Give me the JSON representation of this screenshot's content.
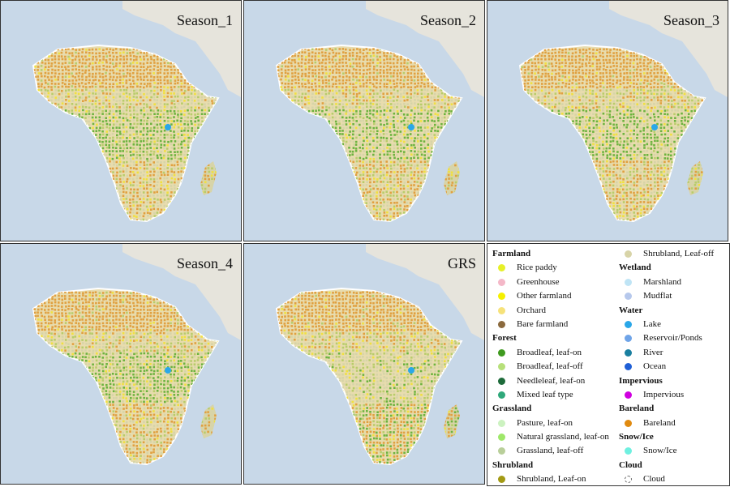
{
  "panels": [
    {
      "title": "Season_1",
      "dominant_colors": [
        "#e0a040",
        "#6db33f",
        "#b8cc6b",
        "#d6d4a8",
        "#f0e040"
      ]
    },
    {
      "title": "Season_2",
      "dominant_colors": [
        "#e0a040",
        "#6db33f",
        "#d6d4a8",
        "#b8cc6b",
        "#f0e040"
      ]
    },
    {
      "title": "Season_3",
      "dominant_colors": [
        "#e0a040",
        "#6db33f",
        "#d6d4a8",
        "#b8cc6b",
        "#f0e040"
      ]
    },
    {
      "title": "Season_4",
      "dominant_colors": [
        "#e0a040",
        "#6db33f",
        "#b8cc6b",
        "#d6d4a8",
        "#f0e040"
      ]
    },
    {
      "title": "GRS",
      "dominant_colors": [
        "#e0a040",
        "#d6d4a8",
        "#b8cc6b",
        "#6db33f",
        "#f0e040"
      ]
    }
  ],
  "legend": {
    "col1": [
      {
        "type": "head",
        "label": "Farmland"
      },
      {
        "type": "item",
        "label": "Rice paddy",
        "color": "#e6f028"
      },
      {
        "type": "item",
        "label": "Greenhouse",
        "color": "#f4b8c8"
      },
      {
        "type": "item",
        "label": "Other farmland",
        "color": "#f5f000"
      },
      {
        "type": "item",
        "label": "Orchard",
        "color": "#f6e27a"
      },
      {
        "type": "item",
        "label": "Bare farmland",
        "color": "#8b6a3e"
      },
      {
        "type": "head",
        "label": "Forest"
      },
      {
        "type": "item",
        "label": "Broadleaf, leaf-on",
        "color": "#3f9a1f"
      },
      {
        "type": "item",
        "label": "Broadleaf, leaf-off",
        "color": "#b7e07a"
      },
      {
        "type": "item",
        "label": "Needleleaf, leaf-on",
        "color": "#1e6b3a"
      },
      {
        "type": "item",
        "label": "Mixed leaf type",
        "color": "#2fa87a"
      },
      {
        "type": "head",
        "label": "Grassland"
      },
      {
        "type": "item",
        "label": "Pasture, leaf-on",
        "color": "#ccf2c0"
      },
      {
        "type": "item",
        "label": "Natural grassland, leaf-on",
        "color": "#9fe86a"
      },
      {
        "type": "item",
        "label": "Grassland, leaf-off",
        "color": "#b9cf9a"
      },
      {
        "type": "head",
        "label": "Shrubland"
      },
      {
        "type": "item",
        "label": "Shrubland, Leaf-on",
        "color": "#a39a14"
      }
    ],
    "col2": [
      {
        "type": "item",
        "label": "Shrubland, Leaf-off",
        "color": "#d8d4a8"
      },
      {
        "type": "head",
        "label": "Wetland"
      },
      {
        "type": "item",
        "label": "Marshland",
        "color": "#bfe4f5"
      },
      {
        "type": "item",
        "label": "Mudflat",
        "color": "#b6c8ec"
      },
      {
        "type": "head",
        "label": "Water"
      },
      {
        "type": "item",
        "label": "Lake",
        "color": "#2aa7e8"
      },
      {
        "type": "item",
        "label": "Reservoir/Ponds",
        "color": "#6fa4e8"
      },
      {
        "type": "item",
        "label": "River",
        "color": "#1a7fa0"
      },
      {
        "type": "item",
        "label": "Ocean",
        "color": "#1f5fd6"
      },
      {
        "type": "head",
        "label": "Impervious"
      },
      {
        "type": "item",
        "label": "Impervious",
        "color": "#d000e0"
      },
      {
        "type": "head",
        "label": "Bareland"
      },
      {
        "type": "item",
        "label": "Bareland",
        "color": "#e08a10"
      },
      {
        "type": "head",
        "label": "Snow/Ice"
      },
      {
        "type": "item",
        "label": "Snow/Ice",
        "color": "#6ff0e0"
      },
      {
        "type": "head",
        "label": "Cloud"
      },
      {
        "type": "item",
        "label": "Cloud",
        "color": "",
        "dashed": true
      }
    ]
  }
}
